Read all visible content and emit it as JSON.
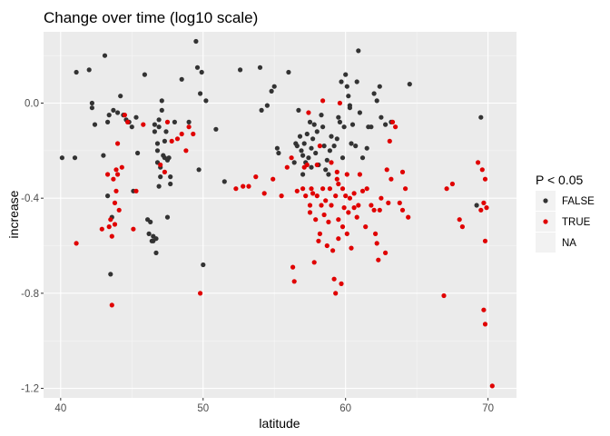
{
  "chart_data": {
    "type": "scatter",
    "title": "Change over time (log10 scale)",
    "xlabel": "latitude",
    "ylabel": "increase",
    "xlim": [
      38.8,
      72.0
    ],
    "ylim": [
      -1.24,
      0.3
    ],
    "xticks": [
      40,
      50,
      60,
      70
    ],
    "yticks": [
      0.0,
      -0.4,
      -0.8,
      -1.2
    ],
    "xtick_labels": [
      "40",
      "50",
      "60",
      "70"
    ],
    "ytick_labels": [
      "0.0",
      "-0.4",
      "-0.8",
      "-1.2"
    ],
    "grid": true,
    "legend": {
      "title": "P < 0.05",
      "position": "right",
      "entries": [
        {
          "label": "FALSE",
          "color": "#333333"
        },
        {
          "label": "TRUE",
          "color": "#e00000"
        },
        {
          "label": "NA",
          "color": ""
        }
      ]
    },
    "series": [
      {
        "name": "FALSE",
        "color": "#333333",
        "points": [
          [
            40.1,
            -0.23
          ],
          [
            41.0,
            -0.23
          ],
          [
            41.1,
            0.13
          ],
          [
            42.0,
            0.14
          ],
          [
            42.2,
            -0.02
          ],
          [
            42.2,
            0.0
          ],
          [
            42.4,
            -0.09
          ],
          [
            43.0,
            -0.22
          ],
          [
            43.1,
            0.2
          ],
          [
            43.3,
            -0.39
          ],
          [
            43.3,
            -0.08
          ],
          [
            43.4,
            -0.05
          ],
          [
            43.5,
            -0.72
          ],
          [
            43.6,
            -0.48
          ],
          [
            43.7,
            -0.03
          ],
          [
            44.0,
            -0.04
          ],
          [
            44.2,
            0.03
          ],
          [
            44.4,
            -0.05
          ],
          [
            44.6,
            -0.07
          ],
          [
            44.8,
            -0.08
          ],
          [
            45.0,
            -0.1
          ],
          [
            45.1,
            -0.37
          ],
          [
            45.3,
            -0.06
          ],
          [
            45.4,
            -0.21
          ],
          [
            45.9,
            0.12
          ],
          [
            46.1,
            -0.49
          ],
          [
            46.2,
            -0.55
          ],
          [
            46.3,
            -0.5
          ],
          [
            46.4,
            -0.58
          ],
          [
            46.5,
            -0.56
          ],
          [
            46.5,
            -0.58
          ],
          [
            46.6,
            -0.09
          ],
          [
            46.6,
            -0.12
          ],
          [
            46.7,
            -0.57
          ],
          [
            46.7,
            -0.63
          ],
          [
            46.8,
            -0.25
          ],
          [
            46.8,
            -0.17
          ],
          [
            46.8,
            -0.2
          ],
          [
            46.9,
            -0.1
          ],
          [
            46.9,
            -0.07
          ],
          [
            46.9,
            -0.35
          ],
          [
            47.0,
            -0.31
          ],
          [
            47.0,
            -0.27
          ],
          [
            47.1,
            0.01
          ],
          [
            47.1,
            -0.03
          ],
          [
            47.2,
            -0.22
          ],
          [
            47.3,
            -0.16
          ],
          [
            47.3,
            -0.23
          ],
          [
            47.4,
            -0.12
          ],
          [
            47.5,
            -0.48
          ],
          [
            47.5,
            -0.24
          ],
          [
            47.6,
            -0.23
          ],
          [
            47.7,
            -0.34
          ],
          [
            47.7,
            -0.31
          ],
          [
            48.0,
            -0.08
          ],
          [
            48.5,
            0.1
          ],
          [
            49.0,
            -0.08
          ],
          [
            49.5,
            0.26
          ],
          [
            49.6,
            0.15
          ],
          [
            49.7,
            -0.28
          ],
          [
            49.8,
            0.04
          ],
          [
            49.9,
            0.13
          ],
          [
            50.0,
            -0.68
          ],
          [
            50.2,
            0.01
          ],
          [
            50.9,
            -0.11
          ],
          [
            51.5,
            -0.33
          ],
          [
            52.6,
            0.14
          ],
          [
            54.0,
            0.15
          ],
          [
            54.1,
            -0.03
          ],
          [
            54.5,
            -0.01
          ],
          [
            54.8,
            0.05
          ],
          [
            55.0,
            0.07
          ],
          [
            55.2,
            -0.19
          ],
          [
            55.3,
            -0.21
          ],
          [
            56.0,
            0.13
          ],
          [
            56.4,
            -0.25
          ],
          [
            56.5,
            -0.17
          ],
          [
            56.6,
            -0.18
          ],
          [
            56.7,
            -0.03
          ],
          [
            56.8,
            -0.14
          ],
          [
            56.9,
            -0.2
          ],
          [
            57.0,
            -0.3
          ],
          [
            57.0,
            -0.22
          ],
          [
            57.1,
            -0.17
          ],
          [
            57.2,
            -0.25
          ],
          [
            57.3,
            -0.13
          ],
          [
            57.4,
            -0.23
          ],
          [
            57.5,
            -0.08
          ],
          [
            57.6,
            -0.19
          ],
          [
            57.6,
            -0.27
          ],
          [
            57.7,
            -0.15
          ],
          [
            57.8,
            -0.09
          ],
          [
            57.9,
            -0.21
          ],
          [
            58.0,
            -0.12
          ],
          [
            58.1,
            -0.26
          ],
          [
            58.3,
            -0.05
          ],
          [
            58.4,
            -0.1
          ],
          [
            58.5,
            -0.18
          ],
          [
            58.6,
            -0.28
          ],
          [
            58.7,
            -0.24
          ],
          [
            58.8,
            -0.3
          ],
          [
            58.9,
            -0.2
          ],
          [
            59.0,
            -0.14
          ],
          [
            59.2,
            -0.18
          ],
          [
            59.4,
            -0.15
          ],
          [
            59.5,
            -0.06
          ],
          [
            59.6,
            -0.08
          ],
          [
            59.7,
            0.09
          ],
          [
            59.8,
            -0.23
          ],
          [
            59.9,
            -0.1
          ],
          [
            60.0,
            0.12
          ],
          [
            60.1,
            0.07
          ],
          [
            60.2,
            0.03
          ],
          [
            60.3,
            -0.01
          ],
          [
            60.3,
            -0.02
          ],
          [
            60.4,
            -0.17
          ],
          [
            60.5,
            -0.09
          ],
          [
            60.7,
            -0.18
          ],
          [
            60.8,
            0.09
          ],
          [
            60.9,
            0.22
          ],
          [
            61.0,
            -0.04
          ],
          [
            61.2,
            -0.23
          ],
          [
            61.5,
            -0.19
          ],
          [
            61.6,
            -0.1
          ],
          [
            61.8,
            -0.1
          ],
          [
            62.0,
            0.04
          ],
          [
            62.2,
            0.01
          ],
          [
            62.4,
            0.07
          ],
          [
            62.5,
            -0.06
          ],
          [
            62.8,
            -0.09
          ],
          [
            63.2,
            -0.08
          ],
          [
            64.5,
            0.08
          ],
          [
            69.2,
            -0.43
          ],
          [
            69.5,
            -0.06
          ]
        ]
      },
      {
        "name": "TRUE",
        "color": "#e00000",
        "points": [
          [
            41.1,
            -0.59
          ],
          [
            42.9,
            -0.53
          ],
          [
            43.3,
            -0.3
          ],
          [
            43.4,
            -0.52
          ],
          [
            43.5,
            -0.49
          ],
          [
            43.6,
            -0.85
          ],
          [
            43.6,
            -0.56
          ],
          [
            43.7,
            -0.32
          ],
          [
            43.8,
            -0.51
          ],
          [
            43.8,
            -0.42
          ],
          [
            43.9,
            -0.28
          ],
          [
            43.9,
            -0.37
          ],
          [
            44.0,
            -0.17
          ],
          [
            44.0,
            -0.3
          ],
          [
            44.1,
            -0.45
          ],
          [
            44.3,
            -0.27
          ],
          [
            44.5,
            -0.05
          ],
          [
            44.7,
            -0.08
          ],
          [
            45.1,
            -0.53
          ],
          [
            45.3,
            -0.37
          ],
          [
            45.8,
            -0.09
          ],
          [
            47.0,
            -0.26
          ],
          [
            47.3,
            -0.29
          ],
          [
            47.5,
            -0.08
          ],
          [
            47.8,
            -0.16
          ],
          [
            48.2,
            -0.15
          ],
          [
            48.5,
            -0.13
          ],
          [
            48.8,
            -0.2
          ],
          [
            49.0,
            -0.1
          ],
          [
            49.3,
            -0.13
          ],
          [
            49.8,
            -0.8
          ],
          [
            52.3,
            -0.36
          ],
          [
            52.8,
            -0.35
          ],
          [
            53.2,
            -0.35
          ],
          [
            53.7,
            -0.31
          ],
          [
            54.3,
            -0.38
          ],
          [
            54.9,
            -0.32
          ],
          [
            55.5,
            -0.39
          ],
          [
            55.9,
            -0.27
          ],
          [
            56.2,
            -0.23
          ],
          [
            56.3,
            -0.69
          ],
          [
            56.4,
            -0.75
          ],
          [
            56.6,
            -0.37
          ],
          [
            57.0,
            -0.36
          ],
          [
            57.1,
            -0.27
          ],
          [
            57.2,
            -0.39
          ],
          [
            57.3,
            -0.26
          ],
          [
            57.4,
            -0.04
          ],
          [
            57.5,
            -0.46
          ],
          [
            57.5,
            -0.43
          ],
          [
            57.6,
            -0.36
          ],
          [
            57.7,
            -0.38
          ],
          [
            57.8,
            -0.67
          ],
          [
            57.9,
            -0.49
          ],
          [
            58.0,
            -0.26
          ],
          [
            58.0,
            -0.39
          ],
          [
            58.1,
            -0.58
          ],
          [
            58.2,
            -0.55
          ],
          [
            58.2,
            -0.18
          ],
          [
            58.3,
            -0.43
          ],
          [
            58.4,
            -0.36
          ],
          [
            58.4,
            0.01
          ],
          [
            58.5,
            -0.47
          ],
          [
            58.6,
            -0.41
          ],
          [
            58.7,
            -0.6
          ],
          [
            58.8,
            -0.5
          ],
          [
            58.9,
            -0.36
          ],
          [
            59.0,
            -0.25
          ],
          [
            59.0,
            -0.43
          ],
          [
            59.1,
            -0.62
          ],
          [
            59.2,
            -0.74
          ],
          [
            59.3,
            -0.8
          ],
          [
            59.3,
            -0.39
          ],
          [
            59.4,
            -0.32
          ],
          [
            59.4,
            -0.29
          ],
          [
            59.5,
            -0.57
          ],
          [
            59.5,
            -0.34
          ],
          [
            59.5,
            -0.49
          ],
          [
            59.6,
            0.0
          ],
          [
            59.7,
            -0.76
          ],
          [
            59.8,
            -0.52
          ],
          [
            59.8,
            -0.36
          ],
          [
            59.9,
            -0.44
          ],
          [
            60.0,
            -0.39
          ],
          [
            60.1,
            -0.3
          ],
          [
            60.1,
            -0.55
          ],
          [
            60.2,
            -0.46
          ],
          [
            60.3,
            -0.4
          ],
          [
            60.4,
            -0.61
          ],
          [
            60.6,
            -0.38
          ],
          [
            60.6,
            -0.44
          ],
          [
            60.8,
            -0.48
          ],
          [
            60.9,
            -0.43
          ],
          [
            61.0,
            -0.3
          ],
          [
            61.2,
            -0.37
          ],
          [
            61.4,
            -0.52
          ],
          [
            61.5,
            -0.36
          ],
          [
            61.8,
            -0.43
          ],
          [
            62.0,
            -0.45
          ],
          [
            62.1,
            -0.55
          ],
          [
            62.2,
            -0.59
          ],
          [
            62.3,
            -0.66
          ],
          [
            62.4,
            -0.45
          ],
          [
            62.5,
            -0.4
          ],
          [
            62.8,
            -0.63
          ],
          [
            62.9,
            -0.28
          ],
          [
            63.0,
            -0.42
          ],
          [
            63.1,
            -0.16
          ],
          [
            63.2,
            -0.32
          ],
          [
            63.3,
            -0.08
          ],
          [
            63.5,
            -0.1
          ],
          [
            63.8,
            -0.42
          ],
          [
            64.0,
            -0.29
          ],
          [
            64.0,
            -0.45
          ],
          [
            64.2,
            -0.36
          ],
          [
            64.4,
            -0.48
          ],
          [
            66.9,
            -0.81
          ],
          [
            67.1,
            -0.36
          ],
          [
            67.5,
            -0.34
          ],
          [
            68.0,
            -0.49
          ],
          [
            68.2,
            -0.52
          ],
          [
            69.3,
            -0.25
          ],
          [
            69.5,
            -0.45
          ],
          [
            69.6,
            -0.28
          ],
          [
            69.7,
            -0.42
          ],
          [
            69.7,
            -0.87
          ],
          [
            69.8,
            -0.58
          ],
          [
            69.8,
            -0.93
          ],
          [
            69.8,
            -0.32
          ],
          [
            69.9,
            -0.44
          ],
          [
            70.3,
            -1.19
          ]
        ]
      }
    ]
  }
}
